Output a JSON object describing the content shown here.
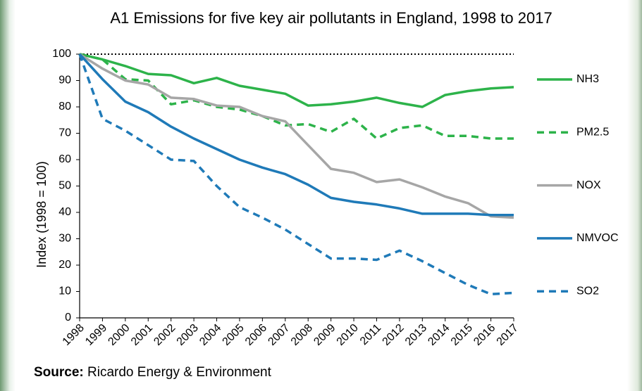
{
  "chart_data": {
    "type": "line",
    "title": "A1 Emissions for five key air pollutants in England, 1998 to 2017",
    "y_label": "Index (1998 = 100)",
    "source_label": "Source:",
    "source_text": "Ricardo Energy & Environment",
    "categories": [
      "1998",
      "1999",
      "2000",
      "2001",
      "2002",
      "2003",
      "2004",
      "2005",
      "2006",
      "2007",
      "2008",
      "2009",
      "2010",
      "2011",
      "2012",
      "2013",
      "2014",
      "2015",
      "2016",
      "2017"
    ],
    "ylim": [
      0,
      100
    ],
    "yticks": [
      0,
      10,
      20,
      30,
      40,
      50,
      60,
      70,
      80,
      90,
      100
    ],
    "series": [
      {
        "name": "NH3",
        "color": "#2db34a",
        "dashed": false,
        "values": [
          100,
          98,
          95.5,
          92.5,
          92,
          89,
          91,
          88,
          86.5,
          85,
          80.5,
          81,
          82,
          83.5,
          81.5,
          80,
          84.5,
          86,
          87,
          87.5
        ]
      },
      {
        "name": "PM2.5",
        "color": "#2db34a",
        "dashed": true,
        "values": [
          100,
          98,
          90.5,
          90,
          81,
          82.5,
          80,
          79,
          76.5,
          73,
          73.5,
          70.5,
          75.5,
          68,
          72,
          73,
          69,
          69,
          68,
          68
        ]
      },
      {
        "name": "NOX",
        "color": "#a6a6a6",
        "dashed": false,
        "values": [
          100,
          94.5,
          90,
          88.5,
          83.5,
          83,
          80.5,
          80,
          76.5,
          74.5,
          65.5,
          56.5,
          55,
          51.5,
          52.5,
          49.5,
          46,
          43.5,
          38.5,
          38
        ]
      },
      {
        "name": "NMVOC",
        "color": "#1f7ab8",
        "dashed": false,
        "values": [
          100,
          90.5,
          82,
          78,
          72.5,
          68,
          64,
          60,
          57,
          54.5,
          50.5,
          45.5,
          44,
          43,
          41.5,
          39.5,
          39.5,
          39.5,
          39,
          39
        ]
      },
      {
        "name": "SO2",
        "color": "#1f7ab8",
        "dashed": true,
        "values": [
          100,
          75.5,
          71,
          65.5,
          60,
          59.5,
          50,
          42,
          38,
          33.5,
          28,
          22.5,
          22.5,
          22,
          25.5,
          21.5,
          17,
          12.5,
          9,
          9.5
        ]
      }
    ]
  }
}
